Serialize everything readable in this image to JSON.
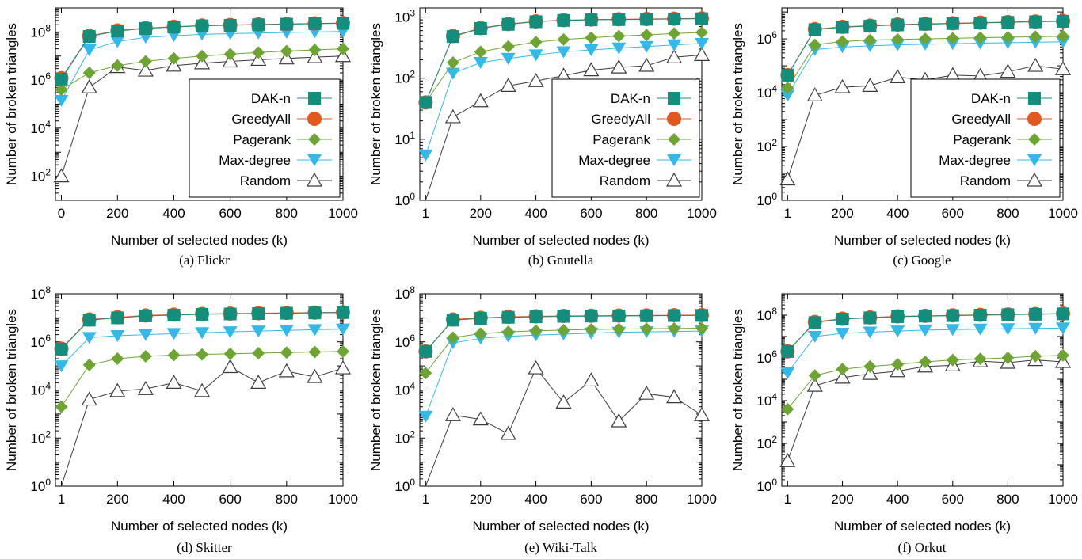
{
  "chart_data": [
    {
      "type": "line",
      "caption": "(a) Flickr",
      "xlabel": "Number of selected nodes (k)",
      "ylabel": "Number of broken triangles",
      "x": [
        1,
        100,
        200,
        300,
        400,
        500,
        600,
        700,
        800,
        900,
        1000
      ],
      "xticks": [
        "0",
        "200",
        "400",
        "600",
        "800",
        "1000"
      ],
      "yticks": [
        "10^2",
        "10^4",
        "10^6",
        "10^8"
      ],
      "log_y": true,
      "ylim_exp": [
        1,
        9
      ],
      "legend": "inside-bottom-right",
      "series": [
        {
          "name": "DAK-n",
          "values": [
            1100000.0,
            65000000.0,
            110000000.0,
            140000000.0,
            160000000.0,
            180000000.0,
            190000000.0,
            200000000.0,
            210000000.0,
            220000000.0,
            230000000.0
          ]
        },
        {
          "name": "GreedyAll",
          "values": [
            1200000.0,
            68000000.0,
            115000000.0,
            145000000.0,
            165000000.0,
            185000000.0,
            195000000.0,
            205000000.0,
            215000000.0,
            225000000.0,
            235000000.0
          ]
        },
        {
          "name": "Pagerank",
          "values": [
            400000.0,
            2000000.0,
            4000000.0,
            6000000.0,
            8000000.0,
            10000000.0,
            12000000.0,
            14000000.0,
            16000000.0,
            18000000.0,
            20000000.0
          ]
        },
        {
          "name": "Max-degree",
          "values": [
            140000.0,
            18000000.0,
            40000000.0,
            60000000.0,
            70000000.0,
            80000000.0,
            85000000.0,
            90000000.0,
            95000000.0,
            100000000.0,
            105000000.0
          ]
        },
        {
          "name": "Random",
          "values": [
            100,
            500000.0,
            3500000.0,
            2500000.0,
            4000000.0,
            5000000.0,
            6000000.0,
            7000000.0,
            8000000.0,
            9000000.0,
            10000000.0
          ]
        }
      ]
    },
    {
      "type": "line",
      "caption": "(b) Gnutella",
      "xlabel": "Number of selected nodes (k)",
      "ylabel": "Number of broken triangles",
      "x": [
        1,
        100,
        200,
        300,
        400,
        500,
        600,
        700,
        800,
        900,
        1000
      ],
      "xticks": [
        "1",
        "200",
        "400",
        "600",
        "800",
        "1000"
      ],
      "yticks": [
        "10^0",
        "10^1",
        "10^2",
        "10^3"
      ],
      "log_y": true,
      "ylim_exp": [
        0,
        3.15
      ],
      "legend": "inside-bottom-right",
      "series": [
        {
          "name": "DAK-n",
          "values": [
            40,
            480,
            650,
            760,
            840,
            880,
            900,
            910,
            920,
            930,
            940
          ]
        },
        {
          "name": "GreedyAll",
          "values": [
            40,
            490,
            660,
            770,
            850,
            890,
            910,
            920,
            930,
            940,
            950
          ]
        },
        {
          "name": "Pagerank",
          "values": [
            40,
            180,
            270,
            330,
            390,
            430,
            460,
            490,
            510,
            540,
            560
          ]
        },
        {
          "name": "Max-degree",
          "values": [
            5.5,
            120,
            180,
            210,
            240,
            270,
            290,
            310,
            330,
            350,
            370
          ]
        },
        {
          "name": "Random",
          "values": [
            1,
            23,
            42,
            75,
            90,
            110,
            135,
            150,
            160,
            220,
            240
          ]
        }
      ]
    },
    {
      "type": "line",
      "caption": "(c) Google",
      "xlabel": "Number of selected nodes (k)",
      "ylabel": "Number of broken triangles",
      "x": [
        1,
        100,
        200,
        300,
        400,
        500,
        600,
        700,
        800,
        900,
        1000
      ],
      "xticks": [
        "1",
        "200",
        "400",
        "600",
        "800",
        "1000"
      ],
      "yticks": [
        "10^0",
        "10^2",
        "10^4",
        "10^6"
      ],
      "log_y": true,
      "ylim_exp": [
        0,
        7.15
      ],
      "legend": "inside-bottom-right",
      "series": [
        {
          "name": "DAK-n",
          "values": [
            45000.0,
            2200000.0,
            2700000.0,
            3000000.0,
            3300000.0,
            3500000.0,
            3700000.0,
            3900000.0,
            4100000.0,
            4300000.0,
            4500000.0
          ]
        },
        {
          "name": "GreedyAll",
          "values": [
            45000.0,
            2300000.0,
            2800000.0,
            3100000.0,
            3400000.0,
            3600000.0,
            3800000.0,
            4000000.0,
            4200000.0,
            4400000.0,
            4600000.0
          ]
        },
        {
          "name": "Pagerank",
          "values": [
            15000.0,
            600000.0,
            800000.0,
            900000.0,
            950000.0,
            1000000.0,
            1050000.0,
            1100000.0,
            1150000.0,
            1200000.0,
            1250000.0
          ]
        },
        {
          "name": "Max-degree",
          "values": [
            8000.0,
            400000.0,
            500000.0,
            550000.0,
            600000.0,
            630000.0,
            660000.0,
            690000.0,
            720000.0,
            750000.0,
            780000.0
          ]
        },
        {
          "name": "Random",
          "values": [
            6,
            8000.0,
            16000.0,
            18000.0,
            38000.0,
            30000.0,
            45000.0,
            42000.0,
            60000.0,
            100000.0,
            75000.0
          ]
        }
      ]
    },
    {
      "type": "line",
      "caption": "(d) Skitter",
      "xlabel": "Number of selected nodes (k)",
      "ylabel": "Number of broken triangles",
      "x": [
        1,
        100,
        200,
        300,
        400,
        500,
        600,
        700,
        800,
        900,
        1000
      ],
      "xticks": [
        "1",
        "200",
        "400",
        "600",
        "800",
        "1000"
      ],
      "yticks": [
        "10^0",
        "10^2",
        "10^4",
        "10^6",
        "10^8"
      ],
      "log_y": true,
      "ylim_exp": [
        0,
        8
      ],
      "legend": "none",
      "series": [
        {
          "name": "DAK-n",
          "values": [
            500000.0,
            8000000.0,
            10000000.0,
            12000000.0,
            13000000.0,
            14000000.0,
            14500000.0,
            15000000.0,
            15500000.0,
            16000000.0,
            16500000.0
          ]
        },
        {
          "name": "GreedyAll",
          "values": [
            520000.0,
            8500000.0,
            10500000.0,
            12500000.0,
            13500000.0,
            14500000.0,
            15000000.0,
            15500000.0,
            16000000.0,
            16500000.0,
            17000000.0
          ]
        },
        {
          "name": "Pagerank",
          "values": [
            2000.0,
            110000.0,
            200000.0,
            250000.0,
            280000.0,
            300000.0,
            320000.0,
            340000.0,
            360000.0,
            380000.0,
            400000.0
          ]
        },
        {
          "name": "Max-degree",
          "values": [
            100000.0,
            1500000.0,
            1800000.0,
            2000000.0,
            2200000.0,
            2400000.0,
            2600000.0,
            2800000.0,
            3000000.0,
            3200000.0,
            3400000.0
          ]
        },
        {
          "name": "Random",
          "values": [
            1,
            4000.0,
            9000.0,
            11000.0,
            20000.0,
            9000.0,
            90000.0,
            20000.0,
            60000.0,
            35000.0,
            80000.0
          ]
        }
      ]
    },
    {
      "type": "line",
      "caption": "(e) Wiki-Talk",
      "xlabel": "Number of selected nodes (k)",
      "ylabel": "Number of broken triangles",
      "x": [
        1,
        100,
        200,
        300,
        400,
        500,
        600,
        700,
        800,
        900,
        1000
      ],
      "xticks": [
        "1",
        "200",
        "400",
        "600",
        "800",
        "1000"
      ],
      "yticks": [
        "10^0",
        "10^2",
        "10^4",
        "10^6",
        "10^8"
      ],
      "log_y": true,
      "ylim_exp": [
        0,
        8
      ],
      "legend": "none",
      "series": [
        {
          "name": "DAK-n",
          "values": [
            400000.0,
            8000000.0,
            9500000.0,
            10500000.0,
            11000000.0,
            11500000.0,
            11800000.0,
            12000000.0,
            12200000.0,
            12400000.0,
            12600000.0
          ]
        },
        {
          "name": "GreedyAll",
          "values": [
            400000.0,
            8500000.0,
            10000000.0,
            11000000.0,
            11500000.0,
            12000000.0,
            12200000.0,
            12400000.0,
            12600000.0,
            12800000.0,
            13000000.0
          ]
        },
        {
          "name": "Pagerank",
          "values": [
            50000.0,
            1500000.0,
            2200000.0,
            2600000.0,
            2900000.0,
            3100000.0,
            3300000.0,
            3400000.0,
            3500000.0,
            3600000.0,
            3700000.0
          ]
        },
        {
          "name": "Max-degree",
          "values": [
            800,
            900000.0,
            1400000.0,
            1700000.0,
            1900000.0,
            2100000.0,
            2300000.0,
            2500000.0,
            2600000.0,
            2700000.0,
            2800000.0
          ]
        },
        {
          "name": "Random",
          "values": [
            1,
            900,
            600,
            150,
            80000.0,
            3000.0,
            25000.0,
            500,
            7000.0,
            5000.0,
            900
          ]
        }
      ]
    },
    {
      "type": "line",
      "caption": "(f) Orkut",
      "xlabel": "Number of selected nodes (k)",
      "ylabel": "Number of broken triangles",
      "x": [
        1,
        100,
        200,
        300,
        400,
        500,
        600,
        700,
        800,
        900,
        1000
      ],
      "xticks": [
        "1",
        "200",
        "400",
        "600",
        "800",
        "1000"
      ],
      "yticks": [
        "10^0",
        "10^2",
        "10^4",
        "10^6",
        "10^8"
      ],
      "log_y": true,
      "ylim_exp": [
        0,
        9
      ],
      "legend": "none",
      "series": [
        {
          "name": "DAK-n",
          "values": [
            2000000.0,
            45000000.0,
            65000000.0,
            75000000.0,
            85000000.0,
            90000000.0,
            95000000.0,
            100000000.0,
            105000000.0,
            110000000.0,
            115000000.0
          ]
        },
        {
          "name": "GreedyAll",
          "values": [
            2000000.0,
            48000000.0,
            68000000.0,
            78000000.0,
            88000000.0,
            93000000.0,
            98000000.0,
            103000000.0,
            108000000.0,
            113000000.0,
            118000000.0
          ]
        },
        {
          "name": "Pagerank",
          "values": [
            4000.0,
            150000.0,
            300000.0,
            400000.0,
            500000.0,
            650000.0,
            800000.0,
            900000.0,
            1000000.0,
            1200000.0,
            1300000.0
          ]
        },
        {
          "name": "Max-degree",
          "values": [
            200000.0,
            10000000.0,
            14000000.0,
            16000000.0,
            18000000.0,
            20000000.0,
            21000000.0,
            22000000.0,
            23000000.0,
            24000000.0,
            25000000.0
          ]
        },
        {
          "name": "Random",
          "values": [
            15,
            50000.0,
            120000.0,
            180000.0,
            240000.0,
            400000.0,
            450000.0,
            700000.0,
            600000.0,
            800000.0,
            650000.0
          ]
        }
      ]
    }
  ],
  "styles": {
    "DAK-n": {
      "color": "#138d7c",
      "marker": "square"
    },
    "GreedyAll": {
      "color": "#e3581d",
      "marker": "circle"
    },
    "Pagerank": {
      "color": "#6ea532",
      "marker": "diamond"
    },
    "Max-degree": {
      "color": "#33b9e9",
      "marker": "triangle-down"
    },
    "Random": {
      "color": "#3a3a3a",
      "marker": "triangle-up-open"
    }
  }
}
